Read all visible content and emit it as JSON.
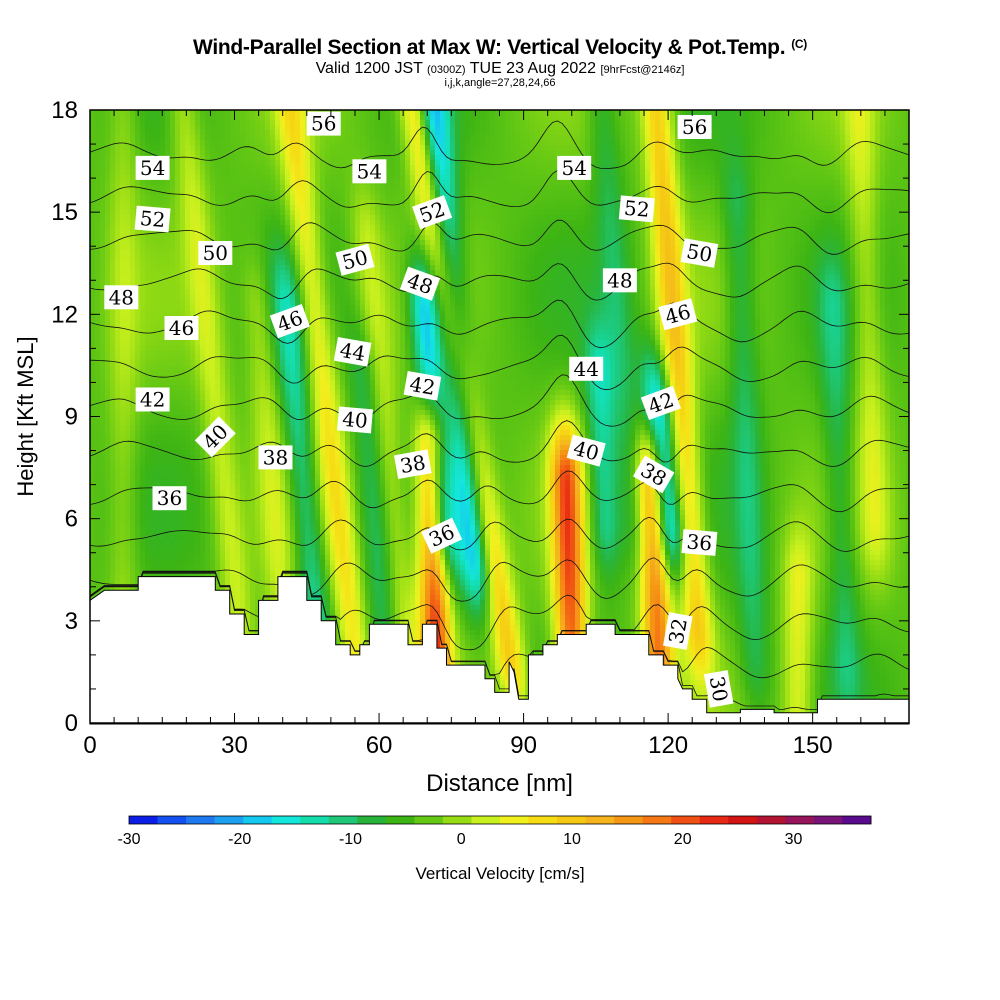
{
  "header": {
    "title": "Wind-Parallel Section at Max W: Vertical Velocity & Pot.Temp.",
    "copyright": "(C)",
    "valid_prefix": "Valid 1200 JST",
    "valid_utc": "(0300Z)",
    "valid_date": "TUE 23 Aug 2022",
    "forecast": "[9hrFcst@2146z]",
    "indices": "i,j,k,angle=27,28,24,66"
  },
  "chart_data": {
    "type": "heatmap",
    "title": "Wind-Parallel Section at Max W: Vertical Velocity & Pot.Temp.",
    "xlabel": "Distance [nm]",
    "ylabel": "Height [Kft MSL]",
    "xlim": [
      0,
      170
    ],
    "ylim": [
      0,
      18
    ],
    "xticks": [
      0,
      30,
      60,
      90,
      120,
      150
    ],
    "yticks": [
      0,
      3,
      6,
      9,
      12,
      15,
      18
    ],
    "colorbar": {
      "label": "Vertical Velocity [cm/s]",
      "range": [
        -30,
        37
      ],
      "ticks": [
        -30,
        -20,
        -10,
        0,
        10,
        20,
        30
      ],
      "colors": [
        "#0a1ee6",
        "#1450f0",
        "#1e78f0",
        "#1ea0f0",
        "#14c8f0",
        "#14e6dc",
        "#14dcaa",
        "#1ec878",
        "#28b43c",
        "#3cb414",
        "#64c814",
        "#96dc14",
        "#c8f01e",
        "#f0f01e",
        "#f5dc14",
        "#f5c814",
        "#f5b41e",
        "#f59614",
        "#f57814",
        "#f05014",
        "#e62814",
        "#d21414",
        "#b41432",
        "#96145a",
        "#781478",
        "#5a0a8c"
      ]
    },
    "wind_bands": [
      {
        "x": 7,
        "w": 4,
        "lean": 0,
        "y0": 2,
        "y1": 18
      },
      {
        "x": 31,
        "w": 6,
        "lean": -14,
        "y0": 3,
        "y1": 18
      },
      {
        "x": 40,
        "w": 5,
        "lean": -10,
        "y0": 3,
        "y1": 12
      },
      {
        "x": 47,
        "w": -9,
        "lean": -12,
        "y0": 3,
        "y1": 12
      },
      {
        "x": 55,
        "w": 10,
        "lean": -15,
        "y0": 2,
        "y1": 18
      },
      {
        "x": 61,
        "w": -6,
        "lean": -10,
        "y0": 3,
        "y1": 10
      },
      {
        "x": 65,
        "w": 6,
        "lean": -12,
        "y0": 3,
        "y1": 14
      },
      {
        "x": 73,
        "w": -18,
        "lean": -10,
        "y0": 6,
        "y1": 12
      },
      {
        "x": 72,
        "w": 26,
        "lean": -3,
        "y0": 1,
        "y1": 8
      },
      {
        "x": 80,
        "w": -16,
        "lean": -12,
        "y0": 5,
        "y1": 18
      },
      {
        "x": 87,
        "w": 14,
        "lean": -22,
        "y0": 2,
        "y1": 18
      },
      {
        "x": 100,
        "w": 24,
        "lean": -4,
        "y0": 2,
        "y1": 7
      },
      {
        "x": 107,
        "w": -10,
        "lean": -5,
        "y0": 6,
        "y1": 10
      },
      {
        "x": 113,
        "w": -5,
        "lean": -10,
        "y0": 6,
        "y1": 18
      },
      {
        "x": 118,
        "w": 22,
        "lean": -5,
        "y0": 2,
        "y1": 7
      },
      {
        "x": 120,
        "w": -18,
        "lean": -12,
        "y0": 6,
        "y1": 9
      },
      {
        "x": 126,
        "w": 14,
        "lean": -10,
        "y0": 3,
        "y1": 18
      },
      {
        "x": 138,
        "w": -6,
        "lean": -5,
        "y0": 2,
        "y1": 15
      },
      {
        "x": 147,
        "w": 8,
        "lean": 0,
        "y0": 0.3,
        "y1": 4
      },
      {
        "x": 157,
        "w": -6,
        "lean": -5,
        "y0": 2,
        "y1": 12
      },
      {
        "x": 163,
        "w": 6,
        "lean": -5,
        "y0": 6,
        "y1": 18
      }
    ],
    "terrain": [
      [
        0,
        3.6
      ],
      [
        3,
        3.9
      ],
      [
        10,
        3.9
      ],
      [
        10,
        4.3
      ],
      [
        26,
        4.3
      ],
      [
        26,
        3.9
      ],
      [
        29,
        3.9
      ],
      [
        29,
        3.2
      ],
      [
        32,
        3.2
      ],
      [
        32,
        2.6
      ],
      [
        35,
        2.6
      ],
      [
        35,
        3.6
      ],
      [
        39,
        3.6
      ],
      [
        39,
        4.3
      ],
      [
        45,
        4.3
      ],
      [
        45,
        3.6
      ],
      [
        48,
        3.6
      ],
      [
        48,
        3.0
      ],
      [
        51,
        3.0
      ],
      [
        51,
        2.3
      ],
      [
        54,
        2.3
      ],
      [
        54,
        2.0
      ],
      [
        56,
        2.0
      ],
      [
        56,
        2.3
      ],
      [
        58,
        2.3
      ],
      [
        58,
        2.9
      ],
      [
        66,
        2.9
      ],
      [
        66,
        2.3
      ],
      [
        69,
        2.3
      ],
      [
        69,
        2.9
      ],
      [
        72,
        2.9
      ],
      [
        72,
        2.2
      ],
      [
        74,
        2.2
      ],
      [
        74,
        1.7
      ],
      [
        82,
        1.7
      ],
      [
        82,
        1.3
      ],
      [
        84,
        1.3
      ],
      [
        84,
        0.9
      ],
      [
        87,
        0.9
      ],
      [
        87,
        1.8
      ],
      [
        88,
        1.5
      ],
      [
        89,
        0.7
      ],
      [
        91,
        0.7
      ],
      [
        91,
        2.0
      ],
      [
        94,
        2.0
      ],
      [
        94,
        2.3
      ],
      [
        97,
        2.3
      ],
      [
        97,
        2.6
      ],
      [
        103,
        2.6
      ],
      [
        103,
        2.9
      ],
      [
        109,
        2.9
      ],
      [
        109,
        2.6
      ],
      [
        116,
        2.6
      ],
      [
        116,
        2.0
      ],
      [
        119,
        2.0
      ],
      [
        119,
        1.7
      ],
      [
        122,
        1.7
      ],
      [
        122,
        1.3
      ],
      [
        123,
        1.0
      ],
      [
        125,
        1.0
      ],
      [
        125,
        0.7
      ],
      [
        128,
        0.7
      ],
      [
        128,
        0.3
      ],
      [
        135,
        0.3
      ],
      [
        135,
        0.4
      ],
      [
        142,
        0.4
      ],
      [
        142,
        0.3
      ],
      [
        151,
        0.3
      ],
      [
        151,
        0.7
      ],
      [
        170,
        0.7
      ]
    ],
    "theta_lines": [
      30,
      32,
      34,
      36,
      38,
      40,
      42,
      44,
      46,
      48,
      50,
      52,
      54,
      56
    ],
    "contour_labels": [
      {
        "text": "30",
        "x": 130.5,
        "y": 1.0,
        "angle": 80
      },
      {
        "text": "32",
        "x": 122,
        "y": 2.7,
        "angle": -80
      },
      {
        "text": "36",
        "x": 73,
        "y": 5.5,
        "angle": -25
      },
      {
        "text": "36",
        "x": 126.5,
        "y": 5.3,
        "angle": 5
      },
      {
        "text": "36",
        "x": 16.5,
        "y": 6.6,
        "angle": 0
      },
      {
        "text": "38",
        "x": 38.5,
        "y": 7.8,
        "angle": 0
      },
      {
        "text": "38",
        "x": 67,
        "y": 7.6,
        "angle": -10
      },
      {
        "text": "38",
        "x": 117,
        "y": 7.3,
        "angle": 30
      },
      {
        "text": "40",
        "x": 26,
        "y": 8.4,
        "angle": -45
      },
      {
        "text": "40",
        "x": 55,
        "y": 8.9,
        "angle": 5
      },
      {
        "text": "40",
        "x": 103,
        "y": 8.0,
        "angle": 15
      },
      {
        "text": "42",
        "x": 13,
        "y": 9.5,
        "angle": 0
      },
      {
        "text": "42",
        "x": 69,
        "y": 9.9,
        "angle": 10
      },
      {
        "text": "42",
        "x": 118.5,
        "y": 9.4,
        "angle": -20
      },
      {
        "text": "44",
        "x": 54.5,
        "y": 10.9,
        "angle": 10
      },
      {
        "text": "44",
        "x": 103,
        "y": 10.4,
        "angle": 0
      },
      {
        "text": "46",
        "x": 19,
        "y": 11.6,
        "angle": 0
      },
      {
        "text": "46",
        "x": 41.5,
        "y": 11.8,
        "angle": -20
      },
      {
        "text": "46",
        "x": 122,
        "y": 12.0,
        "angle": -15
      },
      {
        "text": "48",
        "x": 6.5,
        "y": 12.5,
        "angle": 0
      },
      {
        "text": "48",
        "x": 68.5,
        "y": 12.9,
        "angle": 20
      },
      {
        "text": "48",
        "x": 110,
        "y": 13.0,
        "angle": 0
      },
      {
        "text": "50",
        "x": 26,
        "y": 13.8,
        "angle": 0
      },
      {
        "text": "50",
        "x": 55,
        "y": 13.6,
        "angle": -15
      },
      {
        "text": "50",
        "x": 126.5,
        "y": 13.8,
        "angle": 10
      },
      {
        "text": "52",
        "x": 13,
        "y": 14.8,
        "angle": 5
      },
      {
        "text": "52",
        "x": 71,
        "y": 15.0,
        "angle": -20
      },
      {
        "text": "52",
        "x": 113.5,
        "y": 15.1,
        "angle": 5
      },
      {
        "text": "54",
        "x": 13,
        "y": 16.3,
        "angle": 0
      },
      {
        "text": "54",
        "x": 58,
        "y": 16.2,
        "angle": 0
      },
      {
        "text": "54",
        "x": 100.5,
        "y": 16.3,
        "angle": 0
      },
      {
        "text": "56",
        "x": 48.5,
        "y": 17.6,
        "angle": 0
      },
      {
        "text": "56",
        "x": 125.5,
        "y": 17.5,
        "angle": 0
      }
    ]
  }
}
